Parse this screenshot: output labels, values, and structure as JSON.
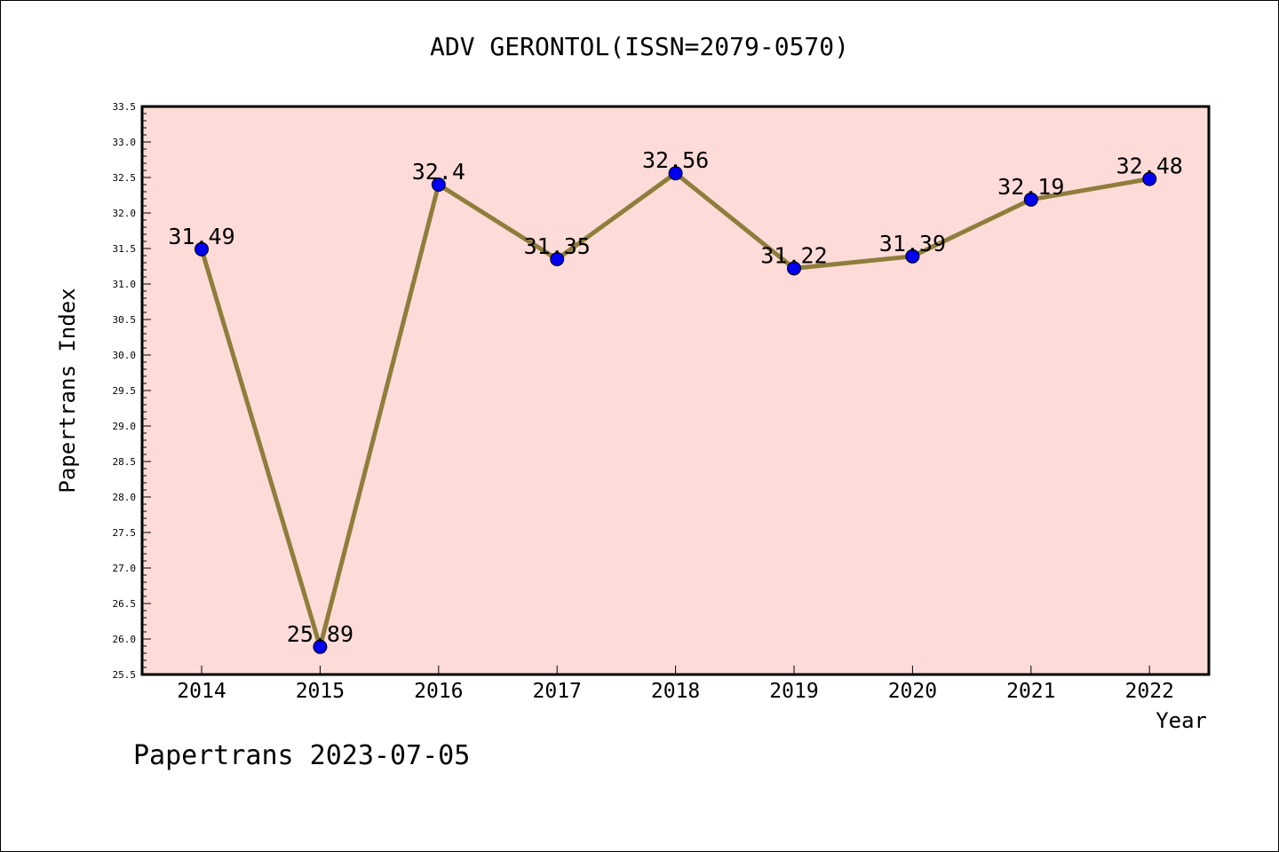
{
  "title": "ADV GERONTOL(ISSN=2079-0570)",
  "watermark": "Papertrans 2023-07-05",
  "chart_data": {
    "type": "line",
    "title": "ADV GERONTOL(ISSN=2079-0570)",
    "xlabel": "Year",
    "ylabel": "Papertrans Index",
    "categories": [
      "2014",
      "2015",
      "2016",
      "2017",
      "2018",
      "2019",
      "2020",
      "2021",
      "2022"
    ],
    "series": [
      {
        "values": [
          31.49,
          25.89,
          32.4,
          31.35,
          32.56,
          31.22,
          31.39,
          32.19,
          32.48
        ],
        "labels": [
          "31.49",
          "25.89",
          "32.4",
          "31.35",
          "32.56",
          "31.22",
          "31.39",
          "32.19",
          "32.48"
        ]
      }
    ],
    "ylim": [
      25.5,
      33.5
    ],
    "yticks": [
      "25.5",
      "26.0",
      "26.5",
      "27.0",
      "27.5",
      "28.0",
      "28.5",
      "29.0",
      "29.5",
      "30.0",
      "30.5",
      "31.0",
      "31.5",
      "32.0",
      "32.5",
      "33.0",
      "33.5"
    ],
    "grid": false,
    "colors": {
      "plot_background": "#fddbd8",
      "line": "#8f7d3c",
      "marker": "#0000ee"
    }
  }
}
